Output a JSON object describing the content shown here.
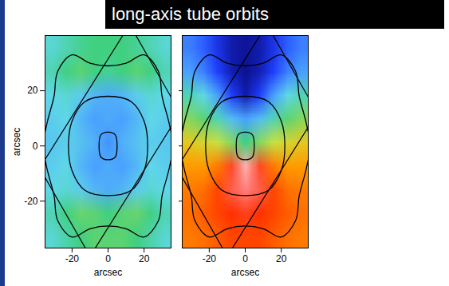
{
  "title": "long-axis tube orbits",
  "chart_data": [
    {
      "type": "heatmap",
      "xlabel": "arcsec",
      "ylabel": "arcsec",
      "xlim": [
        -35,
        35
      ],
      "ylim": [
        -37,
        40
      ],
      "xticks": [
        -20,
        0,
        20
      ],
      "yticks": [
        -20,
        0,
        20
      ],
      "colorscale": {
        "values": [
          0,
          0.15,
          0.3,
          0.4,
          0.5,
          0.6,
          0.7,
          0.82,
          0.92,
          1
        ],
        "colors": [
          "#0a0a80",
          "#1f3fff",
          "#4aa0ff",
          "#60d8e8",
          "#40d080",
          "#c8e040",
          "#ffb000",
          "#ff3000",
          "#ff8080",
          "#ffffff"
        ]
      },
      "cells": [
        [
          0.42,
          0.45,
          0.48,
          0.5,
          0.5,
          0.5,
          0.48,
          0.45,
          0.42
        ],
        [
          0.45,
          0.5,
          0.52,
          0.5,
          0.48,
          0.5,
          0.52,
          0.5,
          0.45
        ],
        [
          0.4,
          0.42,
          0.38,
          0.34,
          0.32,
          0.34,
          0.38,
          0.42,
          0.4
        ],
        [
          0.38,
          0.4,
          0.34,
          0.3,
          0.32,
          0.3,
          0.34,
          0.4,
          0.38
        ],
        [
          0.37,
          0.38,
          0.36,
          0.33,
          0.28,
          0.33,
          0.36,
          0.38,
          0.37
        ],
        [
          0.38,
          0.4,
          0.34,
          0.3,
          0.32,
          0.3,
          0.34,
          0.4,
          0.38
        ],
        [
          0.4,
          0.42,
          0.38,
          0.34,
          0.32,
          0.34,
          0.38,
          0.42,
          0.4
        ],
        [
          0.45,
          0.5,
          0.53,
          0.52,
          0.5,
          0.52,
          0.53,
          0.5,
          0.45
        ],
        [
          0.42,
          0.46,
          0.5,
          0.52,
          0.52,
          0.52,
          0.5,
          0.46,
          0.42
        ]
      ],
      "contours": [
        [
          [
            -34,
            8
          ],
          [
            -30,
            18
          ],
          [
            -28,
            27
          ],
          [
            -20,
            33
          ],
          [
            -10,
            30
          ],
          [
            0,
            29
          ],
          [
            10,
            30
          ],
          [
            20,
            33
          ],
          [
            28,
            27
          ],
          [
            30,
            18
          ],
          [
            34,
            8
          ],
          [
            36,
            0
          ],
          [
            34,
            -8
          ],
          [
            30,
            -18
          ],
          [
            28,
            -27
          ],
          [
            20,
            -33
          ],
          [
            10,
            -30
          ],
          [
            0,
            -29
          ],
          [
            -10,
            -30
          ],
          [
            -20,
            -33
          ],
          [
            -28,
            -27
          ],
          [
            -30,
            -18
          ],
          [
            -34,
            -8
          ],
          [
            -36,
            0
          ]
        ],
        [
          [
            -22,
            0
          ],
          [
            -20,
            9
          ],
          [
            -13,
            16
          ],
          [
            0,
            18
          ],
          [
            13,
            16
          ],
          [
            20,
            9
          ],
          [
            22,
            0
          ],
          [
            20,
            -9
          ],
          [
            13,
            -16
          ],
          [
            0,
            -18
          ],
          [
            -13,
            -16
          ],
          [
            -20,
            -9
          ]
        ],
        [
          [
            -5,
            0
          ],
          [
            -4,
            4
          ],
          [
            0,
            5
          ],
          [
            4,
            4
          ],
          [
            5,
            0
          ],
          [
            4,
            -4
          ],
          [
            0,
            -5
          ],
          [
            -4,
            -4
          ]
        ]
      ],
      "field": [
        [
          -38,
          -8
        ],
        [
          12,
          44
        ],
        [
          40,
          12
        ],
        [
          -10,
          -40
        ]
      ]
    },
    {
      "type": "heatmap",
      "xlabel": "arcsec",
      "xlim": [
        -35,
        35
      ],
      "ylim": [
        -37,
        40
      ],
      "xticks": [
        -20,
        0,
        20
      ],
      "yticks": [
        -20,
        0,
        20
      ],
      "tick_labels": "x",
      "colorscale": {
        "values": [
          0,
          0.15,
          0.3,
          0.4,
          0.5,
          0.6,
          0.7,
          0.82,
          0.92,
          1
        ],
        "colors": [
          "#0a0a80",
          "#1f3fff",
          "#4aa0ff",
          "#60d8e8",
          "#40d080",
          "#c8e040",
          "#ffb000",
          "#ff3000",
          "#ff8080",
          "#ffffff"
        ]
      },
      "cells": [
        [
          0.25,
          0.2,
          0.12,
          0.05,
          0.03,
          0.05,
          0.12,
          0.2,
          0.25
        ],
        [
          0.3,
          0.25,
          0.15,
          0.06,
          0.02,
          0.06,
          0.15,
          0.25,
          0.3
        ],
        [
          0.45,
          0.4,
          0.3,
          0.15,
          0.05,
          0.15,
          0.3,
          0.4,
          0.45
        ],
        [
          0.55,
          0.52,
          0.45,
          0.35,
          0.3,
          0.35,
          0.45,
          0.52,
          0.55
        ],
        [
          0.65,
          0.62,
          0.6,
          0.55,
          0.5,
          0.55,
          0.6,
          0.62,
          0.65
        ],
        [
          0.72,
          0.72,
          0.75,
          0.85,
          0.95,
          0.85,
          0.75,
          0.72,
          0.72
        ],
        [
          0.75,
          0.76,
          0.8,
          0.88,
          0.92,
          0.88,
          0.8,
          0.76,
          0.75
        ],
        [
          0.76,
          0.78,
          0.8,
          0.82,
          0.84,
          0.82,
          0.8,
          0.78,
          0.76
        ],
        [
          0.75,
          0.76,
          0.78,
          0.8,
          0.8,
          0.8,
          0.78,
          0.76,
          0.75
        ]
      ],
      "contours": [
        [
          [
            -34,
            8
          ],
          [
            -30,
            18
          ],
          [
            -28,
            27
          ],
          [
            -20,
            33
          ],
          [
            -10,
            30
          ],
          [
            0,
            29
          ],
          [
            10,
            30
          ],
          [
            20,
            33
          ],
          [
            28,
            27
          ],
          [
            30,
            18
          ],
          [
            34,
            8
          ],
          [
            36,
            0
          ],
          [
            34,
            -8
          ],
          [
            30,
            -18
          ],
          [
            28,
            -27
          ],
          [
            20,
            -33
          ],
          [
            10,
            -30
          ],
          [
            0,
            -29
          ],
          [
            -10,
            -30
          ],
          [
            -20,
            -33
          ],
          [
            -28,
            -27
          ],
          [
            -30,
            -18
          ],
          [
            -34,
            -8
          ],
          [
            -36,
            0
          ]
        ],
        [
          [
            -22,
            0
          ],
          [
            -20,
            9
          ],
          [
            -13,
            16
          ],
          [
            0,
            18
          ],
          [
            13,
            16
          ],
          [
            20,
            9
          ],
          [
            22,
            0
          ],
          [
            20,
            -9
          ],
          [
            13,
            -16
          ],
          [
            0,
            -18
          ],
          [
            -13,
            -16
          ],
          [
            -20,
            -9
          ]
        ],
        [
          [
            -5,
            0
          ],
          [
            -4,
            4
          ],
          [
            0,
            5
          ],
          [
            4,
            4
          ],
          [
            5,
            0
          ],
          [
            4,
            -4
          ],
          [
            0,
            -5
          ],
          [
            -4,
            -4
          ]
        ]
      ],
      "field": [
        [
          -38,
          -8
        ],
        [
          12,
          44
        ],
        [
          40,
          12
        ],
        [
          -10,
          -40
        ]
      ]
    }
  ]
}
